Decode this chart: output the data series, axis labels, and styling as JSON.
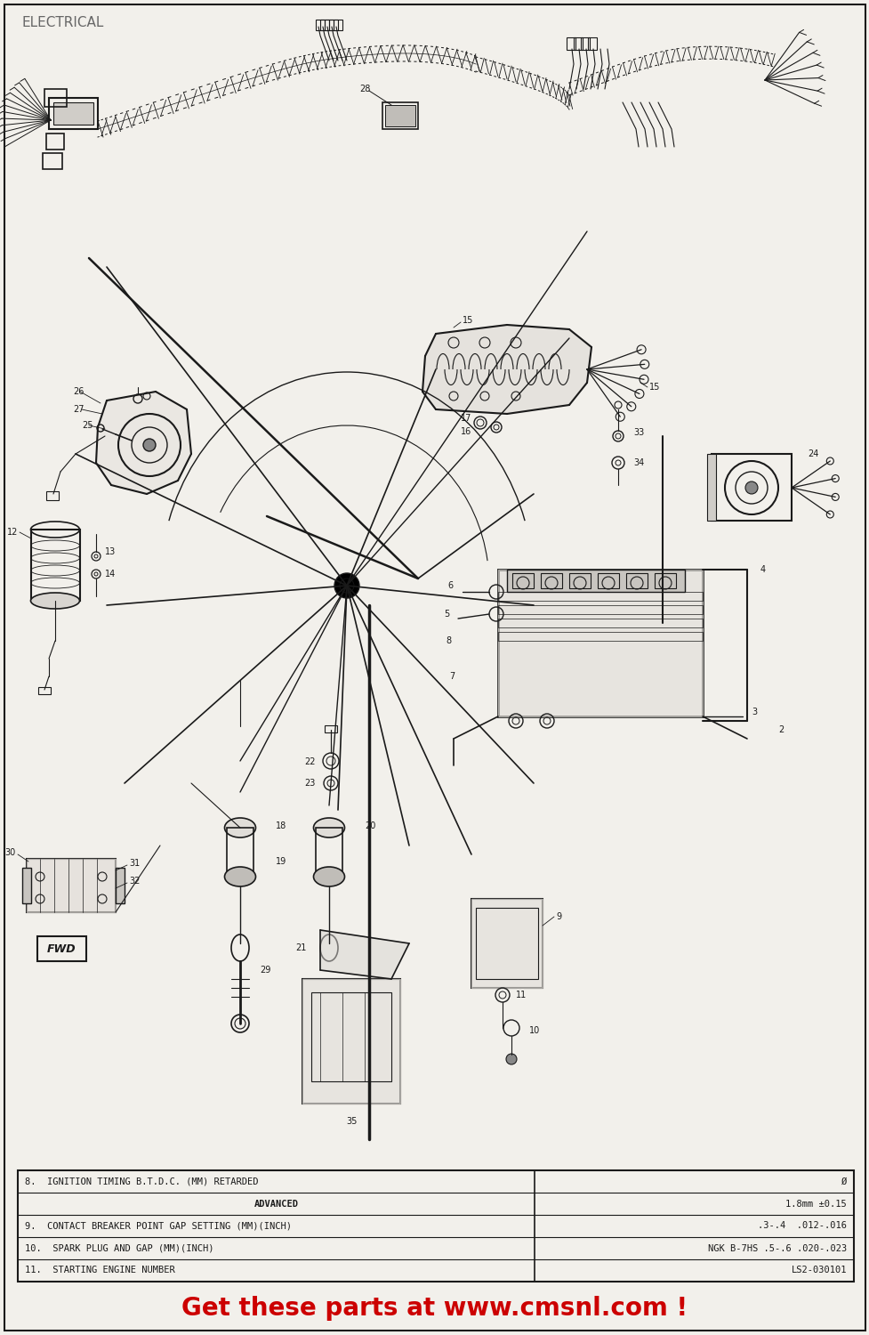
{
  "title": "ELECTRICAL",
  "bg_color": "#f2f0eb",
  "title_color": "#666666",
  "title_fontsize": 11,
  "watermark_text": "Get these parts at www.cmsnl.com !",
  "watermark_color": "#cc0000",
  "watermark_fontsize": 20,
  "line_color": "#1a1a1a",
  "table_rows": [
    {
      "label": "8.  IGNITION TIMING B.T.D.C. (MM) RETARDED",
      "value": "Ø",
      "center_label": false
    },
    {
      "label": "ADVANCED",
      "value": "1.8mm ±0.15",
      "center_label": true
    },
    {
      "label": "9.  CONTACT BREAKER POINT GAP SETTING (MM)(INCH)",
      "value": ".3-.4  .012-.016",
      "center_label": false
    },
    {
      "label": "10.  SPARK PLUG AND GAP (MM)(INCH)",
      "value": "NGK B-7HS .5-.6 .020-.023",
      "center_label": false
    },
    {
      "label": "11.  STARTING ENGINE NUMBER",
      "value": "LS2-030101",
      "center_label": false
    }
  ],
  "table_fontsize": 7.5,
  "col_split": 0.615
}
